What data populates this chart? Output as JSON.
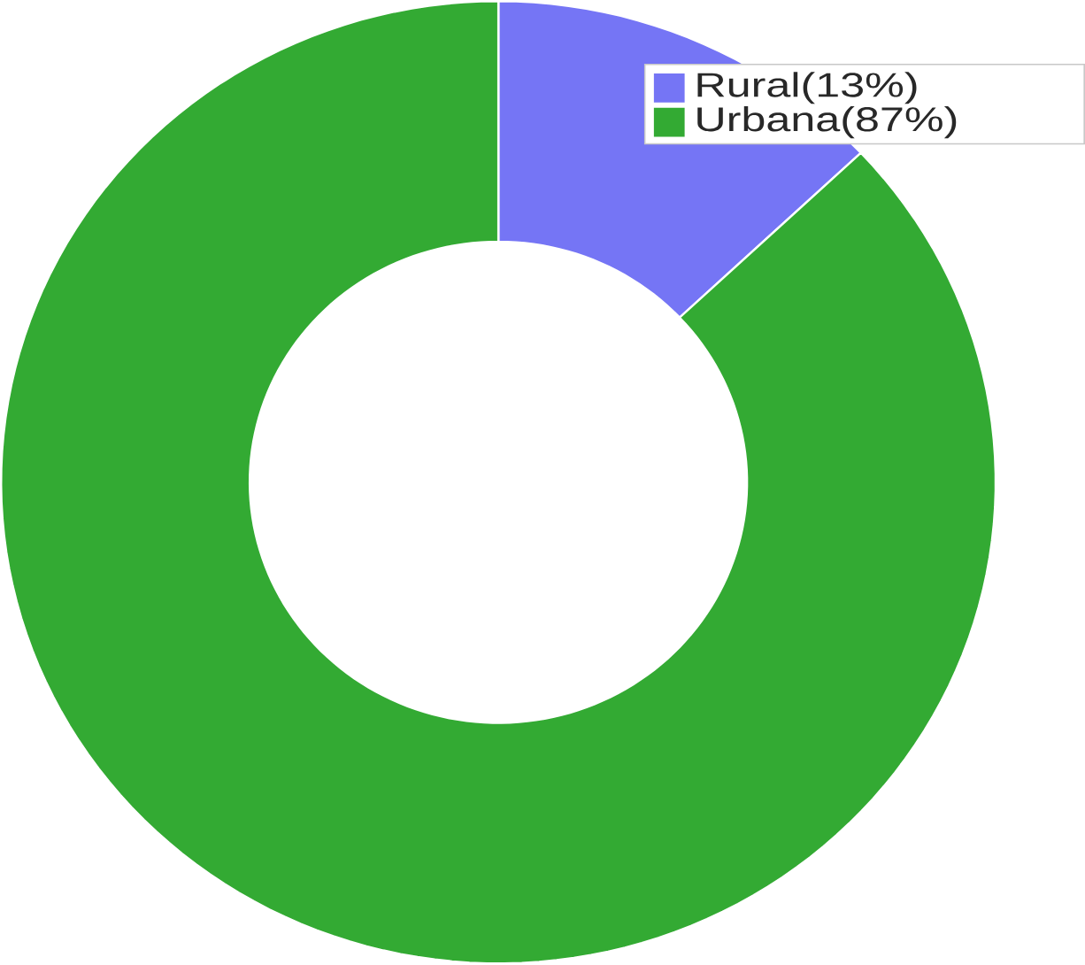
{
  "chart_data": {
    "type": "donut",
    "categories": [
      "Rural(13%)",
      "Urbana(87%)"
    ],
    "values": [
      13,
      87
    ],
    "colors": [
      "#7575f5",
      "#33aa33"
    ],
    "legend": "top right"
  }
}
